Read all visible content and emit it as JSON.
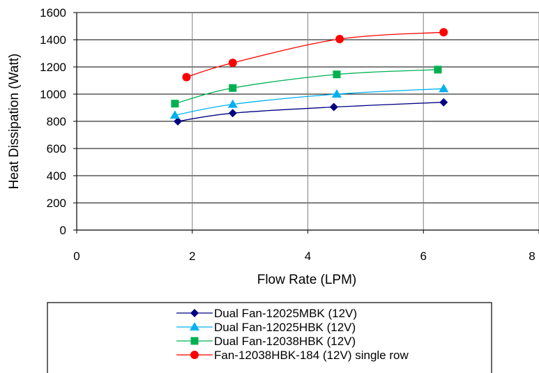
{
  "chart_data": {
    "type": "line",
    "title": "",
    "xlabel": "Flow Rate (LPM)",
    "ylabel": "Heat Dissipation (Watt)",
    "xlim": [
      0,
      8
    ],
    "ylim": [
      0,
      1600
    ],
    "xticks": [
      0,
      2,
      4,
      6,
      8
    ],
    "yticks": [
      0,
      200,
      400,
      600,
      800,
      1000,
      1200,
      1400,
      1600
    ],
    "grid": true,
    "legend_position": "bottom",
    "series": [
      {
        "name": "Dual Fan-12025MBK (12V)",
        "color": "#000080",
        "marker": "diamond",
        "x": [
          1.75,
          2.7,
          4.45,
          6.35
        ],
        "y": [
          800,
          860,
          905,
          940
        ]
      },
      {
        "name": "Dual Fan-12025HBK (12V)",
        "color": "#00b0f0",
        "marker": "triangle",
        "x": [
          1.7,
          2.7,
          4.5,
          6.35
        ],
        "y": [
          845,
          925,
          1000,
          1040
        ]
      },
      {
        "name": "Dual Fan-12038HBK (12V)",
        "color": "#00b050",
        "marker": "square",
        "x": [
          1.7,
          2.7,
          4.5,
          6.25
        ],
        "y": [
          930,
          1045,
          1145,
          1180
        ]
      },
      {
        "name": "Fan-12038HBK-184 (12V) single row",
        "color": "#ff0000",
        "marker": "circle",
        "x": [
          1.9,
          2.7,
          4.55,
          6.35
        ],
        "y": [
          1125,
          1230,
          1405,
          1455
        ]
      }
    ]
  }
}
